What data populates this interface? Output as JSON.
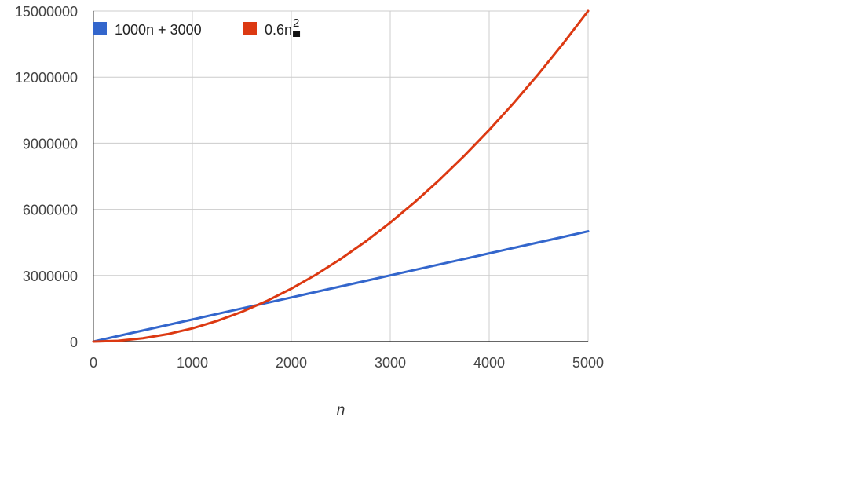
{
  "chart_data": {
    "type": "line",
    "title": "",
    "xlabel": "n",
    "ylabel": "",
    "xlim": [
      0,
      5000
    ],
    "ylim": [
      0,
      15000000
    ],
    "x_ticks": [
      0,
      1000,
      2000,
      3000,
      4000,
      5000
    ],
    "y_ticks": [
      0,
      3000000,
      6000000,
      9000000,
      12000000,
      15000000
    ],
    "x_tick_labels": [
      "0",
      "1000",
      "2000",
      "3000",
      "4000",
      "5000"
    ],
    "y_tick_labels": [
      "0",
      "3000000",
      "6000000",
      "9000000",
      "12000000",
      "15000000"
    ],
    "grid": true,
    "legend_position": "top-left",
    "x": [
      0,
      250,
      500,
      750,
      1000,
      1250,
      1500,
      1750,
      2000,
      2250,
      2500,
      2750,
      3000,
      3250,
      3500,
      3750,
      4000,
      4250,
      4500,
      4750,
      5000
    ],
    "series": [
      {
        "name": "1000n + 3000",
        "name_suffix": "",
        "color": "#3366cc",
        "values": [
          3000,
          253000,
          503000,
          753000,
          1003000,
          1253000,
          1503000,
          1753000,
          2003000,
          2253000,
          2503000,
          2753000,
          3003000,
          3253000,
          3503000,
          3753000,
          4003000,
          4253000,
          4503000,
          4753000,
          5003000
        ]
      },
      {
        "name": "0.6n",
        "name_suffix": "2",
        "color": "#dc3912",
        "values": [
          0,
          37500,
          150000,
          337500,
          600000,
          937500,
          1350000,
          1837500,
          2400000,
          3037500,
          3750000,
          4537500,
          5400000,
          6337500,
          7350000,
          8437500,
          9600000,
          10837500,
          12150000,
          13537500,
          15000000
        ]
      }
    ]
  }
}
